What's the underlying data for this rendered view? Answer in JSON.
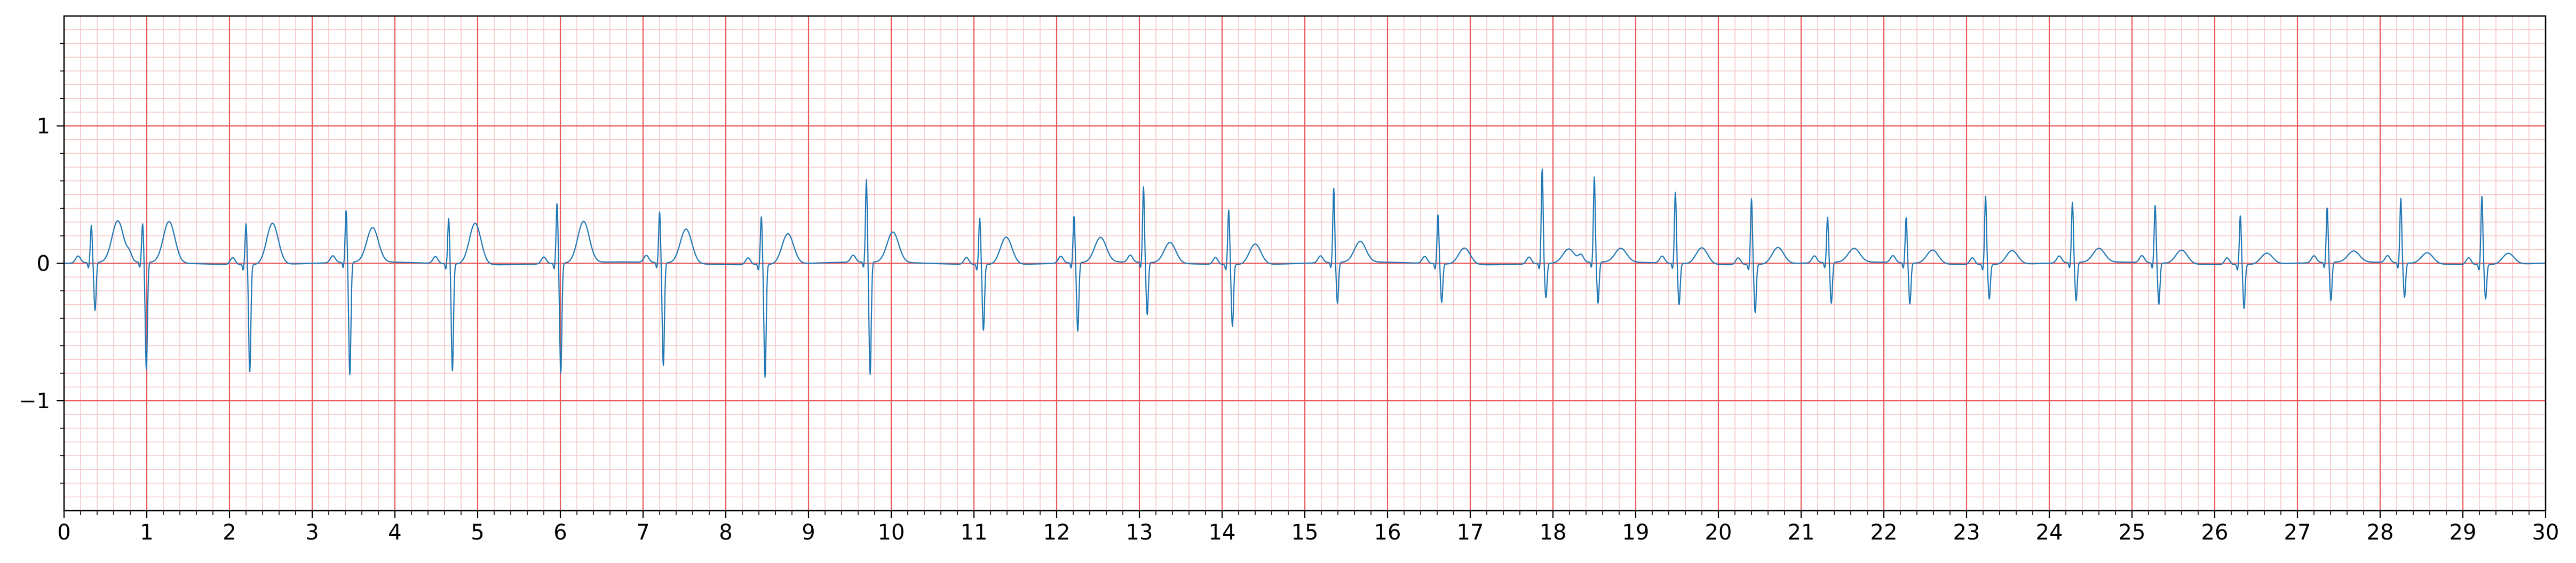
{
  "chart_data": {
    "type": "line",
    "title": "",
    "xlabel": "",
    "ylabel": "",
    "xlim": [
      0,
      30
    ],
    "ylim": [
      -1.8,
      1.8
    ],
    "grid": true,
    "legend": "none",
    "x_ticks": [
      0,
      1,
      2,
      3,
      4,
      5,
      6,
      7,
      8,
      9,
      10,
      11,
      12,
      13,
      14,
      15,
      16,
      17,
      18,
      19,
      20,
      21,
      22,
      23,
      24,
      25,
      26,
      27,
      28,
      29,
      30
    ],
    "y_ticks": [
      -1,
      0,
      1
    ],
    "y_tick_labels": [
      "−1",
      "0",
      "1"
    ],
    "series": [
      {
        "sample_rate_hz": 60,
        "x_start": 0,
        "x_end": 30,
        "beat_times": [
          0.33,
          0.95,
          2.2,
          3.41,
          4.65,
          5.96,
          7.2,
          8.43,
          9.7,
          11.07,
          12.21,
          13.05,
          14.08,
          15.35,
          16.61,
          17.87,
          18.5,
          19.48,
          20.4,
          21.32,
          22.27,
          23.23,
          24.28,
          25.28,
          26.31,
          27.36,
          28.25,
          29.23
        ],
        "beat_peaks": [
          0.27,
          0.28,
          0.3,
          0.38,
          0.33,
          0.44,
          0.37,
          0.35,
          0.6,
          0.34,
          0.34,
          0.55,
          0.4,
          0.54,
          0.36,
          0.69,
          0.62,
          0.52,
          0.48,
          0.33,
          0.33,
          0.5,
          0.44,
          0.42,
          0.36,
          0.4,
          0.47,
          0.5
        ],
        "beat_troughs": [
          -0.35,
          -0.78,
          -0.78,
          -0.82,
          -0.78,
          -0.8,
          -0.75,
          -0.82,
          -0.82,
          -0.48,
          -0.5,
          -0.38,
          -0.45,
          -0.3,
          -0.28,
          -0.25,
          -0.3,
          -0.3,
          -0.35,
          -0.3,
          -0.3,
          -0.25,
          -0.28,
          -0.3,
          -0.32,
          -0.28,
          -0.25,
          -0.25
        ],
        "t_wave_heights": [
          0.3,
          0.3,
          0.3,
          0.25,
          0.3,
          0.3,
          0.25,
          0.22,
          0.22,
          0.2,
          0.18,
          0.15,
          0.15,
          0.15,
          0.12,
          0.1,
          0.1,
          0.12,
          0.12,
          0.1,
          0.1,
          0.1,
          0.1,
          0.1,
          0.08,
          0.08,
          0.08,
          0.08
        ]
      }
    ],
    "colors": {
      "trace": "#1f77b4",
      "major_grid": "#e8595b",
      "minor_grid": "#f7c7c7",
      "axes": "#000000"
    }
  }
}
